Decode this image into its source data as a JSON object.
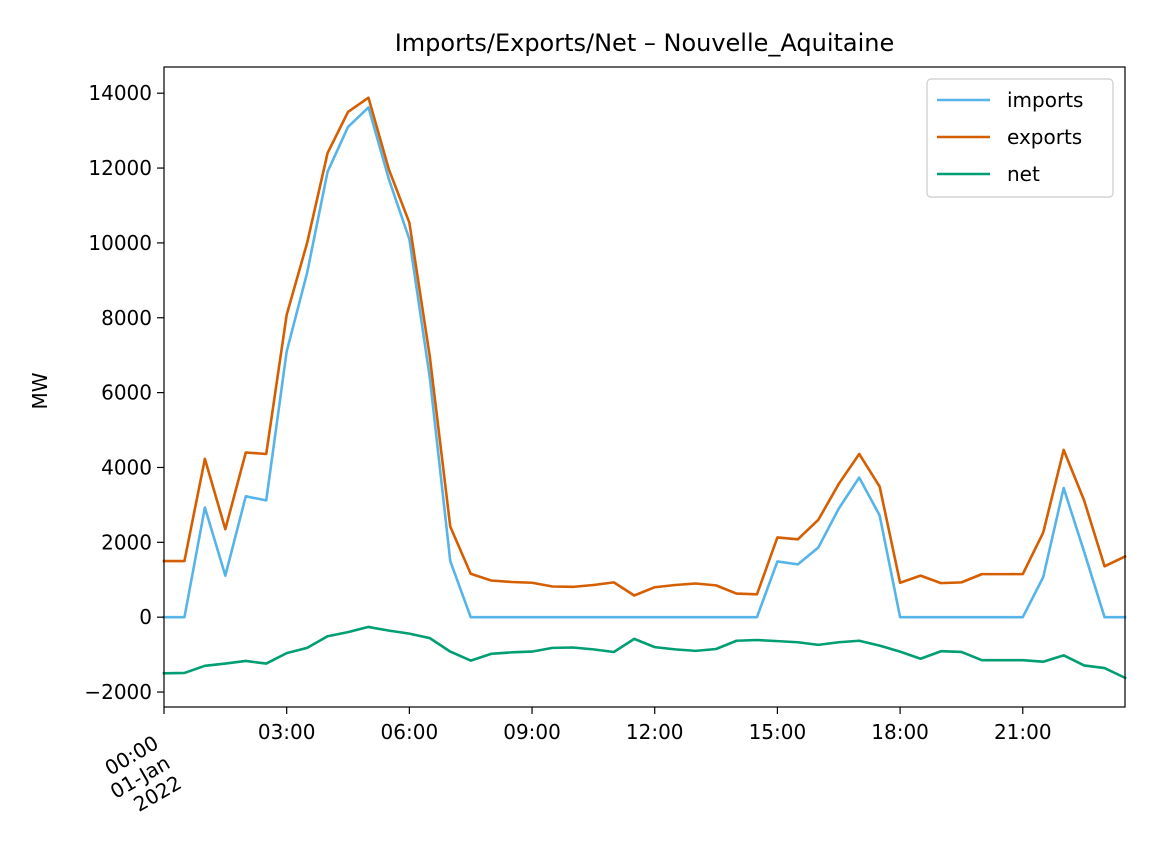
{
  "chart_data": {
    "type": "line",
    "title": "Imports/Exports/Net – Nouvelle_Aquitaine",
    "xlabel": "",
    "ylabel": "MW",
    "ylim": [
      -2400,
      14700
    ],
    "xlim": [
      0,
      23.5
    ],
    "grid": false,
    "legend_position": "top-right",
    "y_ticks": [
      -2000,
      0,
      2000,
      4000,
      6000,
      8000,
      10000,
      12000,
      14000
    ],
    "y_tick_labels": [
      "−2000",
      "0",
      "2000",
      "4000",
      "6000",
      "8000",
      "10000",
      "12000",
      "14000"
    ],
    "x_ticks": [
      {
        "x": 0,
        "lines": [
          "00:00",
          "01-Jan",
          "2022"
        ],
        "rotated": true
      },
      {
        "x": 3,
        "lines": [
          "03:00"
        ],
        "rotated": false
      },
      {
        "x": 6,
        "lines": [
          "06:00"
        ],
        "rotated": false
      },
      {
        "x": 9,
        "lines": [
          "09:00"
        ],
        "rotated": false
      },
      {
        "x": 12,
        "lines": [
          "12:00"
        ],
        "rotated": false
      },
      {
        "x": 15,
        "lines": [
          "15:00"
        ],
        "rotated": false
      },
      {
        "x": 18,
        "lines": [
          "18:00"
        ],
        "rotated": false
      },
      {
        "x": 21,
        "lines": [
          "21:00"
        ],
        "rotated": false
      }
    ],
    "x": [
      "00:00",
      "00:30",
      "01:00",
      "01:30",
      "02:00",
      "02:30",
      "03:00",
      "03:30",
      "04:00",
      "04:30",
      "05:00",
      "05:30",
      "06:00",
      "06:30",
      "07:00",
      "07:30",
      "08:00",
      "08:30",
      "09:00",
      "09:30",
      "10:00",
      "10:30",
      "11:00",
      "11:30",
      "12:00",
      "12:30",
      "13:00",
      "13:30",
      "14:00",
      "14:30",
      "15:00",
      "15:30",
      "16:00",
      "16:30",
      "17:00",
      "17:30",
      "18:00",
      "18:30",
      "19:00",
      "19:30",
      "20:00",
      "20:30",
      "21:00",
      "21:30",
      "22:00",
      "22:30",
      "23:00",
      "23:30"
    ],
    "series": [
      {
        "name": "imports",
        "color": "#56b4e9",
        "values": [
          0,
          0,
          2930,
          1110,
          3230,
          3120,
          7100,
          9200,
          11900,
          13100,
          13620,
          11700,
          10100,
          6400,
          1500,
          0,
          0,
          0,
          0,
          0,
          0,
          0,
          0,
          0,
          0,
          0,
          0,
          0,
          0,
          0,
          1490,
          1410,
          1860,
          2900,
          3730,
          2720,
          0,
          0,
          0,
          0,
          0,
          0,
          0,
          1070,
          3450,
          1750,
          0,
          0
        ]
      },
      {
        "name": "exports",
        "color": "#d55e00",
        "values": [
          1500,
          1500,
          4230,
          2350,
          4400,
          4360,
          8080,
          10000,
          12400,
          13500,
          13880,
          11960,
          10540,
          6960,
          2420,
          1160,
          980,
          940,
          920,
          820,
          810,
          860,
          930,
          580,
          800,
          860,
          900,
          850,
          630,
          610,
          2130,
          2080,
          2600,
          3560,
          4360,
          3490,
          920,
          1110,
          910,
          930,
          1150,
          1150,
          1150,
          2260,
          4470,
          3120,
          1360,
          1620
        ]
      },
      {
        "name": "net",
        "color": "#009e73",
        "values": [
          -1500,
          -1490,
          -1300,
          -1240,
          -1170,
          -1240,
          -960,
          -820,
          -510,
          -400,
          -260,
          -360,
          -440,
          -560,
          -920,
          -1160,
          -980,
          -940,
          -920,
          -820,
          -810,
          -860,
          -930,
          -580,
          -800,
          -860,
          -900,
          -850,
          -630,
          -610,
          -640,
          -670,
          -740,
          -670,
          -630,
          -760,
          -920,
          -1110,
          -910,
          -930,
          -1150,
          -1150,
          -1150,
          -1190,
          -1020,
          -1290,
          -1360,
          -1620
        ]
      }
    ]
  }
}
